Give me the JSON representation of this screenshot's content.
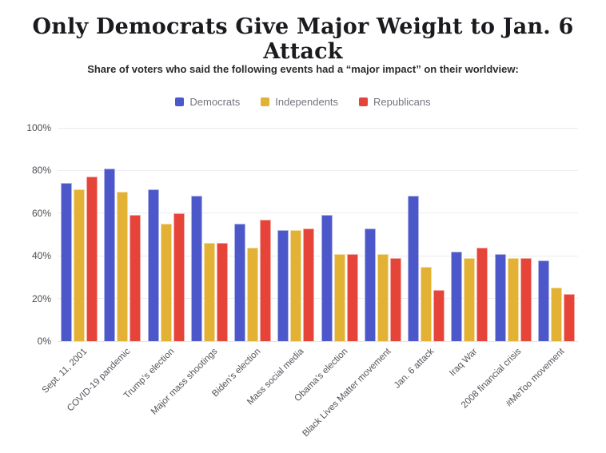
{
  "chart_data": {
    "type": "bar",
    "title": "Only Democrats Give Major Weight to Jan. 6 Attack",
    "subtitle": "Share of voters who said the following events had a “major impact” on their worldview:",
    "categories": [
      "Sept. 11, 2001",
      "COVID-19 pandemic",
      "Trump's election",
      "Major mass shootings",
      "Biden's election",
      "Mass social media",
      "Obama's election",
      "Black Lives Matter movement",
      "Jan. 6 attack",
      "Iraq War",
      "2008 financial crisis",
      "#MeToo movement"
    ],
    "series": [
      {
        "name": "Democrats",
        "color": "#4c57c9",
        "values": [
          74,
          81,
          71,
          68,
          55,
          52,
          59,
          53,
          68,
          42,
          41,
          38
        ]
      },
      {
        "name": "Independents",
        "color": "#e3b133",
        "values": [
          71,
          70,
          55,
          46,
          44,
          52,
          41,
          41,
          35,
          39,
          39,
          25
        ]
      },
      {
        "name": "Republicans",
        "color": "#e64438",
        "values": [
          77,
          59,
          60,
          46,
          57,
          53,
          41,
          39,
          24,
          44,
          39,
          22
        ]
      }
    ],
    "ylabel": "",
    "xlabel": "",
    "ylim": [
      0,
      100
    ],
    "ytick_values": [
      0,
      20,
      40,
      60,
      80,
      100
    ],
    "ytick_labels": [
      "0%",
      "20%",
      "40%",
      "60%",
      "80%",
      "100%"
    ],
    "grid": true,
    "legend_position": "top",
    "colors": {
      "grid": "#ececf2",
      "axis_text": "#4d4d55",
      "title_text": "#1b1b1f",
      "legend_text": "#74747d"
    }
  }
}
